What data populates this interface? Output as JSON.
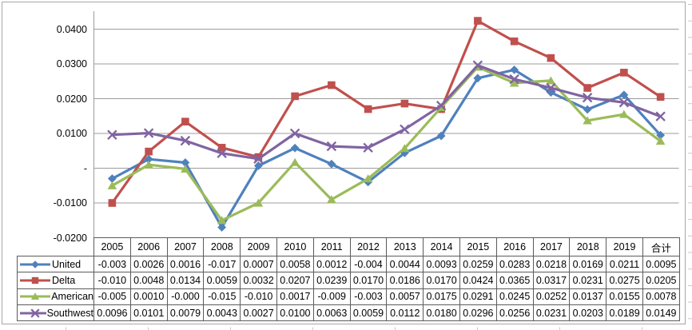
{
  "chart_data": {
    "type": "line",
    "title": "",
    "categories": [
      "2005",
      "2006",
      "2007",
      "2008",
      "2009",
      "2010",
      "2011",
      "2012",
      "2013",
      "2014",
      "2015",
      "2016",
      "2017",
      "2018",
      "2019",
      "合计"
    ],
    "series": [
      {
        "name": "United",
        "color": "#4F81BD",
        "marker": "diamond",
        "values": [
          -0.003,
          0.0026,
          0.0016,
          -0.017,
          0.0007,
          0.0058,
          0.0012,
          -0.004,
          0.0044,
          0.0093,
          0.0259,
          0.0283,
          0.0218,
          0.0169,
          0.0211,
          0.0095
        ],
        "display": [
          "-0.003",
          "0.0026",
          "0.0016",
          "-0.017",
          "0.0007",
          "0.0058",
          "0.0012",
          "-0.004",
          "0.0044",
          "0.0093",
          "0.0259",
          "0.0283",
          "0.0218",
          "0.0169",
          "0.0211",
          "0.0095"
        ]
      },
      {
        "name": "Delta",
        "color": "#C0504D",
        "marker": "square",
        "values": [
          -0.01,
          0.0048,
          0.0134,
          0.0059,
          0.0032,
          0.0207,
          0.0239,
          0.017,
          0.0186,
          0.017,
          0.0424,
          0.0365,
          0.0317,
          0.0231,
          0.0275,
          0.0205
        ],
        "display": [
          "-0.010",
          "0.0048",
          "0.0134",
          "0.0059",
          "0.0032",
          "0.0207",
          "0.0239",
          "0.0170",
          "0.0186",
          "0.0170",
          "0.0424",
          "0.0365",
          "0.0317",
          "0.0231",
          "0.0275",
          "0.0205"
        ]
      },
      {
        "name": "American",
        "color": "#9BBB59",
        "marker": "triangle",
        "values": [
          -0.005,
          0.001,
          -0.0002,
          -0.015,
          -0.01,
          0.0017,
          -0.009,
          -0.003,
          0.0057,
          0.0175,
          0.0291,
          0.0245,
          0.0252,
          0.0137,
          0.0155,
          0.0078
        ],
        "display": [
          "-0.005",
          "0.0010",
          "-0.000",
          "-0.015",
          "-0.010",
          "0.0017",
          "-0.009",
          "-0.003",
          "0.0057",
          "0.0175",
          "0.0291",
          "0.0245",
          "0.0252",
          "0.0137",
          "0.0155",
          "0.0078"
        ]
      },
      {
        "name": "Southwest",
        "color": "#8064A2",
        "marker": "x",
        "values": [
          0.0096,
          0.0101,
          0.0079,
          0.0043,
          0.0027,
          0.01,
          0.0063,
          0.0059,
          0.0112,
          0.018,
          0.0296,
          0.0256,
          0.0231,
          0.0203,
          0.0189,
          0.0149
        ],
        "display": [
          "0.0096",
          "0.0101",
          "0.0079",
          "0.0043",
          "0.0027",
          "0.0100",
          "0.0063",
          "0.0059",
          "0.0112",
          "0.0180",
          "0.0296",
          "0.0256",
          "0.0231",
          "0.0203",
          "0.0189",
          "0.0149"
        ]
      }
    ],
    "y_axis": {
      "min": -0.02,
      "max": 0.045,
      "major_unit": 0.01,
      "tick_labels": [
        {
          "value": 0.04,
          "label": "0.0400"
        },
        {
          "value": 0.03,
          "label": "0.0300"
        },
        {
          "value": 0.02,
          "label": "0.0200"
        },
        {
          "value": 0.01,
          "label": "0.0100"
        },
        {
          "value": 0.0,
          "label": "-"
        },
        {
          "value": -0.01,
          "label": "-0.0100"
        },
        {
          "value": -0.02,
          "label": "-0.0200"
        }
      ]
    },
    "grid": "horizontal-major",
    "legend_position": "data-table-left-column",
    "colors": {
      "gridline": "#9C9C9C",
      "axis": "#9C9C9C",
      "table_border": "#5B5B5B",
      "chart_border": "#A6A6A6",
      "worksheet_gridline": "#C9C9C9"
    }
  }
}
